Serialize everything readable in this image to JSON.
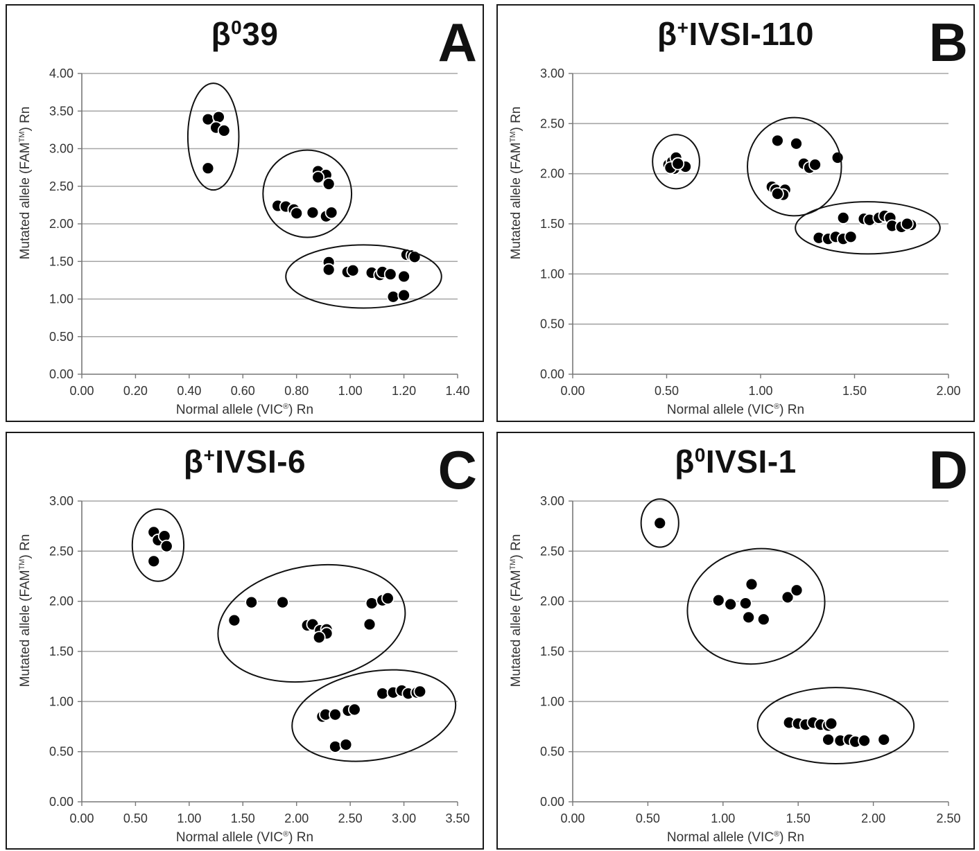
{
  "chart_data": [
    {
      "type": "scatter",
      "panel_letter": "A",
      "title": {
        "base": "β",
        "sup": "0",
        "rest": "39"
      },
      "xlabel": {
        "pre": "Normal allele (VIC",
        "sup": "®",
        "post": ") Rn"
      },
      "ylabel": {
        "pre": "Mutated allele (FAM",
        "sup": "TM",
        "post": ") Rn"
      },
      "xlim": [
        0,
        1.4
      ],
      "ylim": [
        0,
        4
      ],
      "xticks": [
        "0.00",
        "0.20",
        "0.40",
        "0.60",
        "0.80",
        "1.00",
        "1.20",
        "1.40"
      ],
      "yticks": [
        "0.00",
        "0.50",
        "1.00",
        "1.50",
        "2.00",
        "2.50",
        "3.00",
        "3.50",
        "4.00"
      ],
      "grid": true,
      "points": [
        [
          0.47,
          3.39
        ],
        [
          0.51,
          3.42
        ],
        [
          0.5,
          3.28
        ],
        [
          0.53,
          3.24
        ],
        [
          0.47,
          2.74
        ],
        [
          0.88,
          2.7
        ],
        [
          0.91,
          2.65
        ],
        [
          0.88,
          2.62
        ],
        [
          0.92,
          2.53
        ],
        [
          0.73,
          2.24
        ],
        [
          0.76,
          2.23
        ],
        [
          0.79,
          2.19
        ],
        [
          0.8,
          2.14
        ],
        [
          0.86,
          2.15
        ],
        [
          0.91,
          2.1
        ],
        [
          0.93,
          2.15
        ],
        [
          0.92,
          1.49
        ],
        [
          0.92,
          1.39
        ],
        [
          0.99,
          1.36
        ],
        [
          1.01,
          1.38
        ],
        [
          1.08,
          1.35
        ],
        [
          1.11,
          1.32
        ],
        [
          1.12,
          1.36
        ],
        [
          1.15,
          1.33
        ],
        [
          1.2,
          1.3
        ],
        [
          1.21,
          1.59
        ],
        [
          1.23,
          1.58
        ],
        [
          1.24,
          1.56
        ],
        [
          1.16,
          1.03
        ],
        [
          1.2,
          1.05
        ]
      ],
      "clusters": [
        {
          "cx": 0.49,
          "cy": 3.16,
          "rx": 0.095,
          "ry": 0.71,
          "angle": 0
        },
        {
          "cx": 0.84,
          "cy": 2.4,
          "rx": 0.165,
          "ry": 0.58,
          "angle": 0
        },
        {
          "cx": 1.05,
          "cy": 1.3,
          "rx": 0.29,
          "ry": 0.42,
          "angle": 0
        }
      ]
    },
    {
      "type": "scatter",
      "panel_letter": "B",
      "title": {
        "base": "β",
        "sup": "+",
        "rest": "IVSI-110"
      },
      "xlabel": {
        "pre": "Normal allele (VIC",
        "sup": "®",
        "post": ") Rn"
      },
      "ylabel": {
        "pre": "Mutated allele (FAM",
        "sup": "TM",
        "post": ") Rn"
      },
      "xlim": [
        0,
        2
      ],
      "ylim": [
        0,
        3
      ],
      "xticks": [
        "0.00",
        "0.50",
        "1.00",
        "1.50",
        "2.00"
      ],
      "yticks": [
        "0.00",
        "0.50",
        "1.00",
        "1.50",
        "2.00",
        "2.50",
        "3.00"
      ],
      "grid": true,
      "points": [
        [
          0.51,
          2.09
        ],
        [
          0.53,
          2.12
        ],
        [
          0.55,
          2.16
        ],
        [
          0.54,
          2.05
        ],
        [
          0.52,
          2.06
        ],
        [
          0.6,
          2.07
        ],
        [
          0.56,
          2.1
        ],
        [
          1.09,
          2.33
        ],
        [
          1.19,
          2.3
        ],
        [
          1.23,
          2.1
        ],
        [
          1.26,
          2.06
        ],
        [
          1.29,
          2.09
        ],
        [
          1.41,
          2.16
        ],
        [
          1.06,
          1.87
        ],
        [
          1.08,
          1.84
        ],
        [
          1.13,
          1.84
        ],
        [
          1.12,
          1.79
        ],
        [
          1.09,
          1.8
        ],
        [
          1.31,
          1.36
        ],
        [
          1.36,
          1.35
        ],
        [
          1.4,
          1.37
        ],
        [
          1.44,
          1.35
        ],
        [
          1.48,
          1.37
        ],
        [
          1.44,
          1.56
        ],
        [
          1.55,
          1.55
        ],
        [
          1.58,
          1.54
        ],
        [
          1.63,
          1.56
        ],
        [
          1.66,
          1.58
        ],
        [
          1.69,
          1.56
        ],
        [
          1.7,
          1.48
        ],
        [
          1.75,
          1.47
        ],
        [
          1.8,
          1.49
        ],
        [
          1.78,
          1.5
        ]
      ],
      "clusters": [
        {
          "cx": 0.55,
          "cy": 2.12,
          "rx": 0.125,
          "ry": 0.27,
          "angle": 0
        },
        {
          "cx": 1.18,
          "cy": 2.07,
          "rx": 0.25,
          "ry": 0.49,
          "angle": 0
        },
        {
          "cx": 1.57,
          "cy": 1.46,
          "rx": 0.385,
          "ry": 0.26,
          "angle": 0
        }
      ]
    },
    {
      "type": "scatter",
      "panel_letter": "C",
      "title": {
        "base": "β",
        "sup": "+",
        "rest": "IVSI-6"
      },
      "xlabel": {
        "pre": "Normal allele (VIC",
        "sup": "®",
        "post": ") Rn"
      },
      "ylabel": {
        "pre": "Mutated allele (FAM",
        "sup": "TM",
        "post": ") Rn"
      },
      "xlim": [
        0,
        3.5
      ],
      "ylim": [
        0,
        3
      ],
      "xticks": [
        "0.00",
        "0.50",
        "1.00",
        "1.50",
        "2.00",
        "2.50",
        "3.00",
        "3.50"
      ],
      "yticks": [
        "0.00",
        "0.50",
        "1.00",
        "1.50",
        "2.00",
        "2.50",
        "3.00"
      ],
      "grid": true,
      "points": [
        [
          0.67,
          2.69
        ],
        [
          0.71,
          2.61
        ],
        [
          0.77,
          2.65
        ],
        [
          0.79,
          2.55
        ],
        [
          0.67,
          2.4
        ],
        [
          1.42,
          1.81
        ],
        [
          1.58,
          1.99
        ],
        [
          1.87,
          1.99
        ],
        [
          2.1,
          1.76
        ],
        [
          2.15,
          1.77
        ],
        [
          2.22,
          1.71
        ],
        [
          2.28,
          1.72
        ],
        [
          2.28,
          1.68
        ],
        [
          2.21,
          1.64
        ],
        [
          2.68,
          1.77
        ],
        [
          2.7,
          1.98
        ],
        [
          2.8,
          2.01
        ],
        [
          2.85,
          2.03
        ],
        [
          2.24,
          0.85
        ],
        [
          2.27,
          0.87
        ],
        [
          2.36,
          0.87
        ],
        [
          2.48,
          0.91
        ],
        [
          2.54,
          0.92
        ],
        [
          2.8,
          1.08
        ],
        [
          2.9,
          1.09
        ],
        [
          2.98,
          1.11
        ],
        [
          3.04,
          1.08
        ],
        [
          3.12,
          1.09
        ],
        [
          3.15,
          1.1
        ],
        [
          2.36,
          0.55
        ],
        [
          2.46,
          0.57
        ]
      ],
      "clusters": [
        {
          "cx": 0.71,
          "cy": 2.56,
          "rx": 0.24,
          "ry": 0.36,
          "angle": 0
        },
        {
          "cx": 2.14,
          "cy": 1.78,
          "rx": 0.88,
          "ry": 0.57,
          "angle": -10
        },
        {
          "cx": 2.72,
          "cy": 0.86,
          "rx": 0.77,
          "ry": 0.44,
          "angle": -10
        }
      ]
    },
    {
      "type": "scatter",
      "panel_letter": "D",
      "title": {
        "base": "β",
        "sup": "0",
        "rest": "IVSI-1"
      },
      "xlabel": {
        "pre": "Normal allele (VIC",
        "sup": "®",
        "post": ") Rn"
      },
      "ylabel": {
        "pre": "Mutated allele (FAM",
        "sup": "TM",
        "post": ") Rn"
      },
      "xlim": [
        0,
        2.5
      ],
      "ylim": [
        0,
        3
      ],
      "xticks": [
        "0.00",
        "0.50",
        "1.00",
        "1.50",
        "2.00",
        "2.50"
      ],
      "yticks": [
        "0.00",
        "0.50",
        "1.00",
        "1.50",
        "2.00",
        "2.50",
        "3.00"
      ],
      "grid": true,
      "points": [
        [
          0.58,
          2.78
        ],
        [
          0.97,
          2.01
        ],
        [
          1.05,
          1.97
        ],
        [
          1.15,
          1.98
        ],
        [
          1.19,
          2.17
        ],
        [
          1.17,
          1.84
        ],
        [
          1.27,
          1.82
        ],
        [
          1.43,
          2.04
        ],
        [
          1.49,
          2.11
        ],
        [
          1.44,
          0.79
        ],
        [
          1.5,
          0.78
        ],
        [
          1.55,
          0.77
        ],
        [
          1.6,
          0.79
        ],
        [
          1.65,
          0.77
        ],
        [
          1.7,
          0.76
        ],
        [
          1.72,
          0.78
        ],
        [
          1.7,
          0.62
        ],
        [
          1.78,
          0.61
        ],
        [
          1.84,
          0.62
        ],
        [
          1.88,
          0.6
        ],
        [
          1.94,
          0.61
        ],
        [
          2.07,
          0.62
        ]
      ],
      "clusters": [
        {
          "cx": 0.58,
          "cy": 2.78,
          "rx": 0.125,
          "ry": 0.24,
          "angle": 0
        },
        {
          "cx": 1.22,
          "cy": 1.95,
          "rx": 0.46,
          "ry": 0.57,
          "angle": -12
        },
        {
          "cx": 1.75,
          "cy": 0.76,
          "rx": 0.52,
          "ry": 0.38,
          "angle": 0
        }
      ]
    }
  ]
}
